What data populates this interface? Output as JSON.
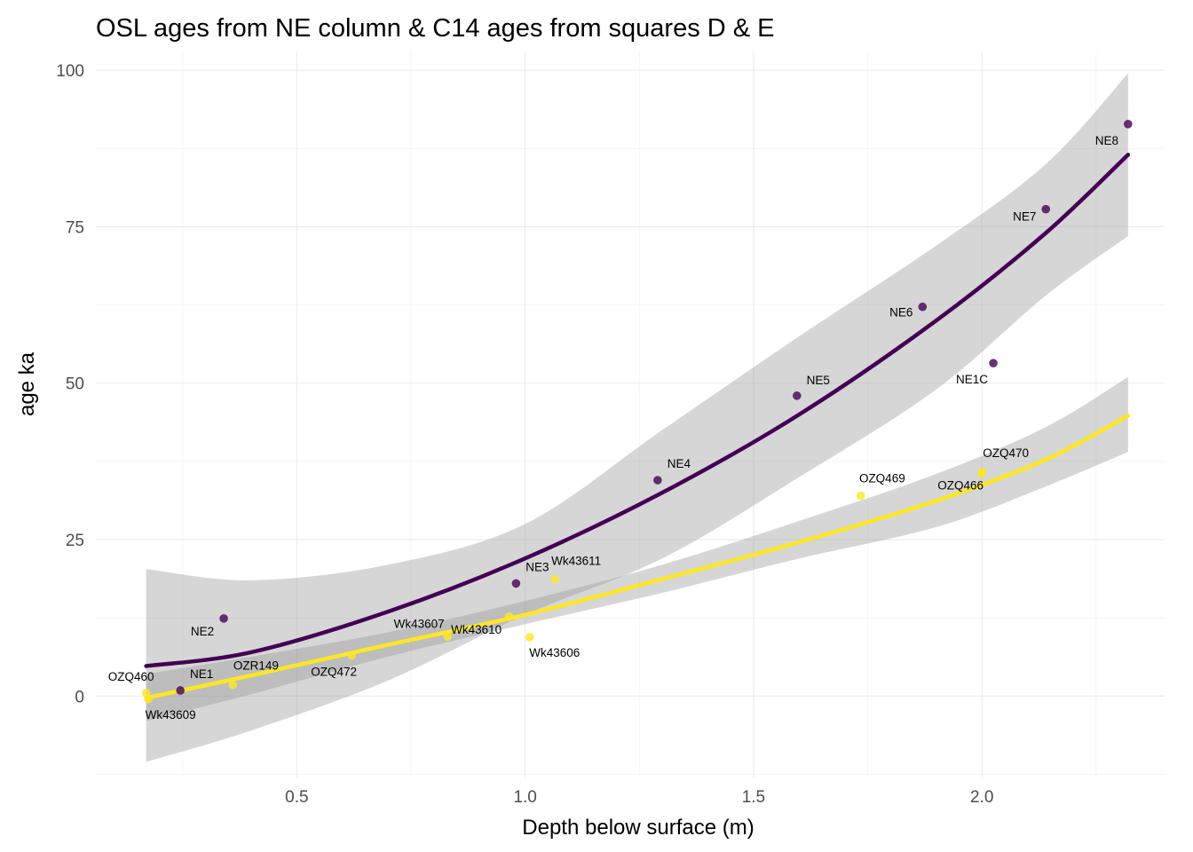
{
  "chart_data": {
    "type": "scatter",
    "title": "OSL ages from NE column & C14 ages from squares D & E",
    "xlabel": "Depth below surface (m)",
    "ylabel": "age ka",
    "xlim": [
      0.06,
      2.4
    ],
    "ylim": [
      -13,
      103
    ],
    "x_ticks": [
      0.5,
      1.0,
      1.5,
      2.0
    ],
    "x_tick_labels": [
      "0.5",
      "1.0",
      "1.5",
      "2.0"
    ],
    "y_ticks": [
      0,
      25,
      50,
      75,
      100
    ],
    "y_tick_labels": [
      "0",
      "25",
      "50",
      "75",
      "100"
    ],
    "grid": true,
    "legend": "none",
    "colors": {
      "osl": "#440154",
      "c14": "#fde725",
      "ribbon": "#999999"
    },
    "series": [
      {
        "points": [
          {
            "label": "NE1",
            "x": 0.245,
            "y": 0.9
          },
          {
            "label": "NE2",
            "x": 0.34,
            "y": 12.4
          },
          {
            "label": "NE3",
            "x": 0.98,
            "y": 18.0
          },
          {
            "label": "NE4",
            "x": 1.29,
            "y": 34.5
          },
          {
            "label": "NE5",
            "x": 1.595,
            "y": 48.0
          },
          {
            "label": "NE6",
            "x": 1.87,
            "y": 62.2
          },
          {
            "label": "NE1C",
            "x": 2.025,
            "y": 53.2
          },
          {
            "label": "NE7",
            "x": 2.14,
            "y": 77.8
          },
          {
            "label": "NE8",
            "x": 2.32,
            "y": 91.4
          }
        ],
        "fit": {
          "x": [
            0.17,
            0.4,
            0.7,
            1.0,
            1.3,
            1.6,
            1.9,
            2.14,
            2.32
          ],
          "y": [
            4.8,
            7.0,
            13.5,
            22.0,
            32.5,
            45.0,
            60.0,
            74.0,
            86.5
          ],
          "lower": [
            -10.5,
            -5.5,
            2.5,
            13.0,
            22.0,
            35.0,
            49.0,
            64.0,
            73.5
          ],
          "upper": [
            20.3,
            18.5,
            21.0,
            27.5,
            42.5,
            57.5,
            72.0,
            85.0,
            99.5
          ]
        }
      },
      {
        "points": [
          {
            "label": "OZQ460",
            "x": 0.17,
            "y": 0.5
          },
          {
            "label": "Wk43609",
            "x": 0.175,
            "y": -0.5
          },
          {
            "label": "OZR149",
            "x": 0.36,
            "y": 1.8
          },
          {
            "label": "OZQ472",
            "x": 0.62,
            "y": 6.5
          },
          {
            "label": "Wk43607",
            "x": 0.83,
            "y": 9.5
          },
          {
            "label": "Wk43610",
            "x": 0.965,
            "y": 12.7
          },
          {
            "label": "Wk43606",
            "x": 1.01,
            "y": 9.4
          },
          {
            "label": "Wk43611",
            "x": 1.065,
            "y": 18.7
          },
          {
            "label": "OZQ469",
            "x": 1.735,
            "y": 32.0
          },
          {
            "label": "OZQ466",
            "x": 2.0,
            "y": 35.6
          },
          {
            "label": "OZQ470",
            "x": 2.0,
            "y": 35.8
          }
        ],
        "fit": {
          "x": [
            0.17,
            0.4,
            0.7,
            1.0,
            1.3,
            1.6,
            1.9,
            2.14,
            2.32
          ],
          "y": [
            -0.3,
            3.3,
            8.2,
            13.0,
            18.7,
            24.6,
            31.2,
            37.8,
            44.8
          ],
          "lower": [
            -4.0,
            0.3,
            6.3,
            11.5,
            16.5,
            22.0,
            27.0,
            33.5,
            39.0
          ],
          "upper": [
            3.5,
            6.3,
            10.2,
            15.2,
            21.0,
            28.0,
            35.5,
            43.0,
            51.0
          ]
        }
      }
    ]
  }
}
